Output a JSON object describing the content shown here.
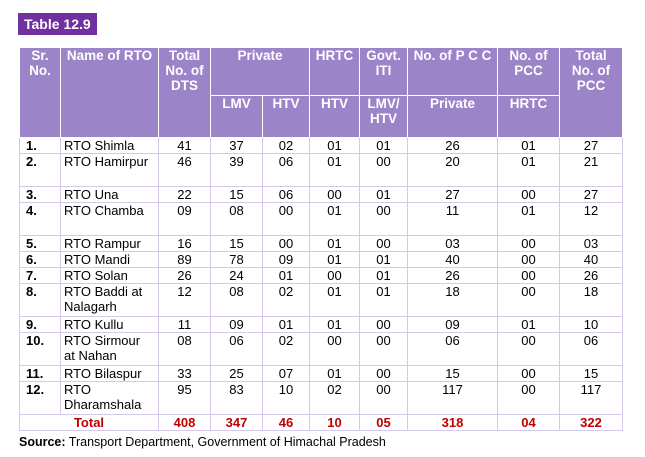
{
  "table_tag": "Table 12.9",
  "headers": {
    "sr": "Sr. No.",
    "name": "Name of RTO",
    "total_dts": "Total No. of DTS",
    "private": "Private",
    "hrtc": "HRTC",
    "govt_iti": "Govt. ITI",
    "no_pcc": "No. of P C C",
    "no_pcc_hrtc": "No. of PCC",
    "total_pcc": "Total No. of PCC",
    "sub_lmv": "LMV",
    "sub_htv": "HTV",
    "sub_hrtc_htv": "HTV",
    "sub_govt": "LMV/ HTV",
    "sub_pcc_private": "Private",
    "sub_pcc_hrtc": "HRTC"
  },
  "rows": [
    {
      "sr": "1.",
      "name": "RTO Shimla",
      "dts": "41",
      "lmv": "37",
      "htv": "02",
      "hrtc": "01",
      "govt": "01",
      "pcc_pvt": "26",
      "pcc_hrtc": "01",
      "total": "27"
    },
    {
      "sr": "2.",
      "name": "RTO Hamirpur",
      "dts": "46",
      "lmv": "39",
      "htv": "06",
      "hrtc": "01",
      "govt": "00",
      "pcc_pvt": "20",
      "pcc_hrtc": "01",
      "total": "21"
    },
    {
      "sr": "3.",
      "name": "RTO Una",
      "dts": "22",
      "lmv": "15",
      "htv": "06",
      "hrtc": "00",
      "govt": "01",
      "pcc_pvt": "27",
      "pcc_hrtc": "00",
      "total": "27"
    },
    {
      "sr": "4.",
      "name": "RTO Chamba",
      "dts": "09",
      "lmv": "08",
      "htv": "00",
      "hrtc": "01",
      "govt": "00",
      "pcc_pvt": "11",
      "pcc_hrtc": "01",
      "total": "12"
    },
    {
      "sr": "5.",
      "name": "RTO Rampur",
      "dts": "16",
      "lmv": "15",
      "htv": "00",
      "hrtc": "01",
      "govt": "00",
      "pcc_pvt": "03",
      "pcc_hrtc": "00",
      "total": "03"
    },
    {
      "sr": "6.",
      "name": "RTO Mandi",
      "dts": "89",
      "lmv": "78",
      "htv": "09",
      "hrtc": "01",
      "govt": "01",
      "pcc_pvt": "40",
      "pcc_hrtc": "00",
      "total": "40"
    },
    {
      "sr": "7.",
      "name": "RTO Solan",
      "dts": "26",
      "lmv": "24",
      "htv": "01",
      "hrtc": "00",
      "govt": "01",
      "pcc_pvt": "26",
      "pcc_hrtc": "00",
      "total": "26"
    },
    {
      "sr": "8.",
      "name": "RTO Baddi at Nalagarh",
      "dts": "12",
      "lmv": "08",
      "htv": "02",
      "hrtc": "01",
      "govt": "01",
      "pcc_pvt": "18",
      "pcc_hrtc": "00",
      "total": "18"
    },
    {
      "sr": "9.",
      "name": "RTO Kullu",
      "dts": "11",
      "lmv": "09",
      "htv": "01",
      "hrtc": "01",
      "govt": "00",
      "pcc_pvt": "09",
      "pcc_hrtc": "01",
      "total": "10"
    },
    {
      "sr": "10.",
      "name": "RTO Sirmour at Nahan",
      "dts": "08",
      "lmv": "06",
      "htv": "02",
      "hrtc": "00",
      "govt": "00",
      "pcc_pvt": "06",
      "pcc_hrtc": "00",
      "total": "06"
    },
    {
      "sr": "11.",
      "name": "RTO Bilaspur",
      "dts": "33",
      "lmv": "25",
      "htv": "07",
      "hrtc": "01",
      "govt": "00",
      "pcc_pvt": "15",
      "pcc_hrtc": "00",
      "total": "15"
    },
    {
      "sr": "12.",
      "name": "RTO Dharamshala",
      "dts": "95",
      "lmv": "83",
      "htv": "10",
      "hrtc": "02",
      "govt": "00",
      "pcc_pvt": "117",
      "pcc_hrtc": "00",
      "total": "117"
    }
  ],
  "total_row": {
    "label": "Total",
    "dts": "408",
    "lmv": "347",
    "htv": "46",
    "hrtc": "10",
    "govt": "05",
    "pcc_pvt": "318",
    "pcc_hrtc": "04",
    "total": "322"
  },
  "source": {
    "label": "Source:",
    "text": "Transport Department, Government of Himachal Pradesh"
  }
}
